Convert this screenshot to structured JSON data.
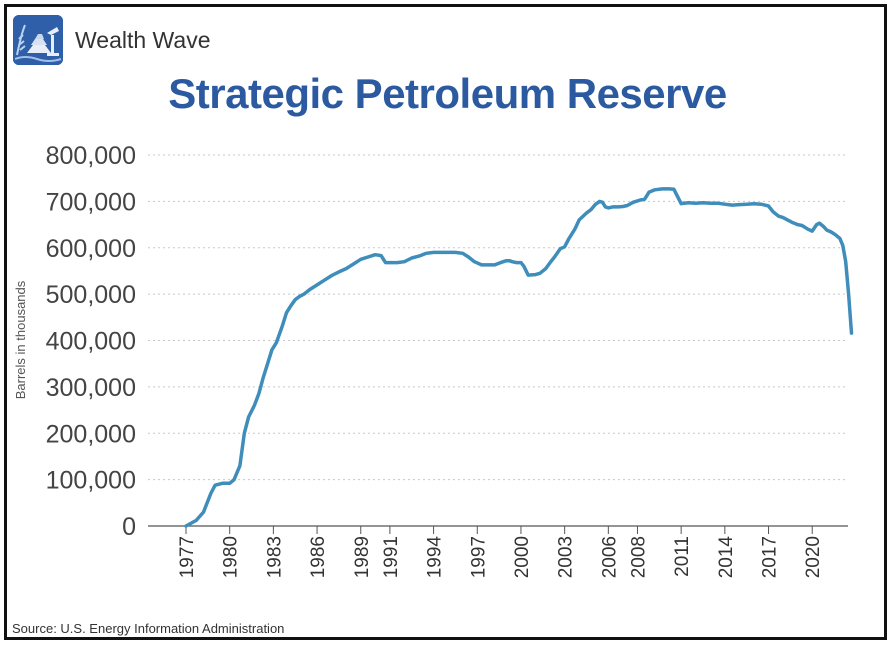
{
  "brand": {
    "name": "Wealth Wave",
    "logo_icon": "wealth-wave-logo-icon"
  },
  "source": "Source: U.S. Energy Information Administration",
  "colors": {
    "line": "#3f8dbb",
    "title": "#2c5aa0",
    "logo_bg": "#2f5fa8",
    "grid": "#c8c8c8"
  },
  "chart_data": {
    "type": "line",
    "title": "Strategic Petroleum Reserve",
    "xlabel": "",
    "ylabel": "Barrels in thousands",
    "xlim": [
      1977,
      2022.8
    ],
    "ylim": [
      0,
      800000
    ],
    "y_ticks": [
      0,
      100000,
      200000,
      300000,
      400000,
      500000,
      600000,
      700000,
      800000
    ],
    "y_tick_labels": [
      "0",
      "100,000",
      "200,000",
      "300,000",
      "400,000",
      "500,000",
      "600,000",
      "700,000",
      "800,000"
    ],
    "x_ticks": [
      1977,
      1980,
      1983,
      1986,
      1989,
      1991,
      1994,
      1997,
      2000,
      2003,
      2006,
      2008,
      2011,
      2014,
      2017,
      2020
    ],
    "x_tick_labels": [
      "1977",
      "1980",
      "1983",
      "1986",
      "1989",
      "1991",
      "1994",
      "1997",
      "2000",
      "2003",
      "2006",
      "2008",
      "2011",
      "2014",
      "2017",
      "2020"
    ],
    "grid": "horizontal dotted",
    "series": [
      {
        "x": [
          1977.0,
          1977.7,
          1978.2,
          1978.7,
          1979.0,
          1979.5,
          1980.0,
          1980.3,
          1980.7,
          1981.0,
          1981.3,
          1981.7,
          1982.0,
          1982.3,
          1982.6,
          1982.9,
          1983.2,
          1983.6,
          1983.9,
          1984.2,
          1984.5,
          1984.8,
          1985.1,
          1985.5,
          1986.0,
          1986.5,
          1987.0,
          1987.5,
          1988.0,
          1988.5,
          1989.0,
          1989.5,
          1990.0,
          1990.4,
          1990.7,
          1991.0,
          1991.5,
          1992.0,
          1992.5,
          1993.0,
          1993.5,
          1994.0,
          1994.5,
          1995.0,
          1995.5,
          1996.0,
          1996.4,
          1996.8,
          1997.3,
          1997.8,
          1998.2,
          1998.6,
          1999.0,
          1999.2,
          1999.4,
          1999.7,
          2000.0,
          2000.2,
          2000.5,
          2001.0,
          2001.3,
          2001.7,
          2002.0,
          2002.3,
          2002.7,
          2003.0,
          2003.3,
          2003.7,
          2004.0,
          2004.5,
          2004.8,
          2005.1,
          2005.4,
          2005.6,
          2005.8,
          2006.0,
          2006.3,
          2006.7,
          2007.0,
          2007.3,
          2007.7,
          2008.0,
          2008.2,
          2008.5,
          2008.8,
          2009.2,
          2009.7,
          2010.2,
          2010.5,
          2011.0,
          2011.2,
          2011.5,
          2012.0,
          2012.5,
          2013.0,
          2013.5,
          2014.0,
          2014.5,
          2015.0,
          2015.5,
          2016.0,
          2016.5,
          2017.0,
          2017.3,
          2017.7,
          2018.0,
          2018.3,
          2018.6,
          2019.0,
          2019.3,
          2019.7,
          2020.0,
          2020.3,
          2020.5,
          2020.8,
          2021.0,
          2021.3,
          2021.6,
          2021.9,
          2022.1,
          2022.3,
          2022.5,
          2022.7
        ],
        "values": [
          0,
          12000,
          30000,
          70000,
          88000,
          92000,
          92000,
          100000,
          130000,
          200000,
          235000,
          260000,
          285000,
          320000,
          350000,
          380000,
          395000,
          430000,
          460000,
          475000,
          488000,
          495000,
          500000,
          510000,
          520000,
          530000,
          540000,
          548000,
          555000,
          565000,
          575000,
          580000,
          585000,
          583000,
          568000,
          568000,
          568000,
          570000,
          578000,
          582000,
          588000,
          590000,
          590000,
          590000,
          590000,
          588000,
          580000,
          570000,
          563000,
          563000,
          563000,
          568000,
          572000,
          572000,
          570000,
          568000,
          568000,
          560000,
          541000,
          542000,
          545000,
          555000,
          568000,
          580000,
          598000,
          602000,
          620000,
          640000,
          660000,
          675000,
          682000,
          693000,
          700000,
          698000,
          688000,
          686000,
          688000,
          688000,
          689000,
          691000,
          698000,
          701000,
          703000,
          705000,
          720000,
          725000,
          727000,
          727000,
          726000,
          695000,
          696000,
          697000,
          696000,
          697000,
          696000,
          696000,
          694000,
          692000,
          693000,
          694000,
          695000,
          694000,
          690000,
          678000,
          668000,
          665000,
          660000,
          655000,
          650000,
          648000,
          640000,
          636000,
          650000,
          653000,
          645000,
          638000,
          634000,
          628000,
          620000,
          605000,
          570000,
          500000,
          416000
        ]
      }
    ]
  }
}
